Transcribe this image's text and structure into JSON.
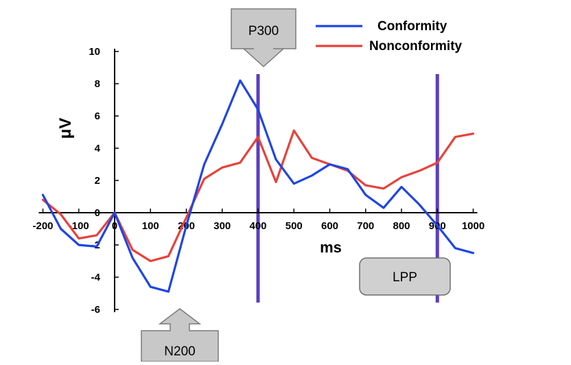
{
  "chart_data": {
    "type": "line",
    "xlabel": "ms",
    "ylabel": "μV",
    "xlim": [
      -200,
      1000
    ],
    "ylim": [
      -6,
      10
    ],
    "x_ticks": [
      -200,
      -100,
      0,
      100,
      200,
      300,
      400,
      500,
      600,
      700,
      800,
      900,
      1000
    ],
    "y_ticks": [
      -6,
      -4,
      -2,
      0,
      2,
      4,
      6,
      8,
      10
    ],
    "x_tick_labels": [
      "-200",
      "-100",
      "0",
      "100",
      "200",
      "300",
      "400",
      "500",
      "600",
      "700",
      "800",
      "900",
      "1000"
    ],
    "y_tick_labels": [
      "-6",
      "-4",
      "-2",
      "0",
      "2",
      "4",
      "6",
      "8",
      "10"
    ],
    "x": [
      -200,
      -150,
      -100,
      -50,
      0,
      50,
      100,
      150,
      200,
      250,
      300,
      350,
      400,
      450,
      500,
      550,
      600,
      650,
      700,
      750,
      800,
      850,
      900,
      950,
      1000
    ],
    "series": [
      {
        "name": "Conformity",
        "color": "#1f45e6",
        "values": [
          1.1,
          -1.0,
          -2.0,
          -2.1,
          0.0,
          -2.8,
          -4.6,
          -4.9,
          -0.8,
          3.0,
          5.5,
          8.2,
          6.4,
          3.3,
          1.8,
          2.3,
          3.0,
          2.7,
          1.1,
          0.3,
          1.6,
          0.5,
          -0.8,
          -2.2,
          -2.5
        ]
      },
      {
        "name": "Nonconformity",
        "color": "#e8413a",
        "values": [
          0.8,
          -0.1,
          -1.6,
          -1.4,
          0.0,
          -2.3,
          -3.0,
          -2.7,
          -0.3,
          2.1,
          2.8,
          3.1,
          4.7,
          1.9,
          5.1,
          3.4,
          3.0,
          2.6,
          1.7,
          1.5,
          2.2,
          2.6,
          3.1,
          4.7,
          4.9
        ]
      }
    ],
    "vertical_markers": [
      {
        "x": 400,
        "color": "#5b3fbf"
      },
      {
        "x": 900,
        "color": "#5b3fbf"
      }
    ],
    "annotations": [
      {
        "text": "P300",
        "x": 350,
        "pointer": "down"
      },
      {
        "text": "N200",
        "x": 150,
        "pointer": "up"
      },
      {
        "text": "LPP"
      }
    ],
    "legend_position": "top-right",
    "grid": false
  }
}
